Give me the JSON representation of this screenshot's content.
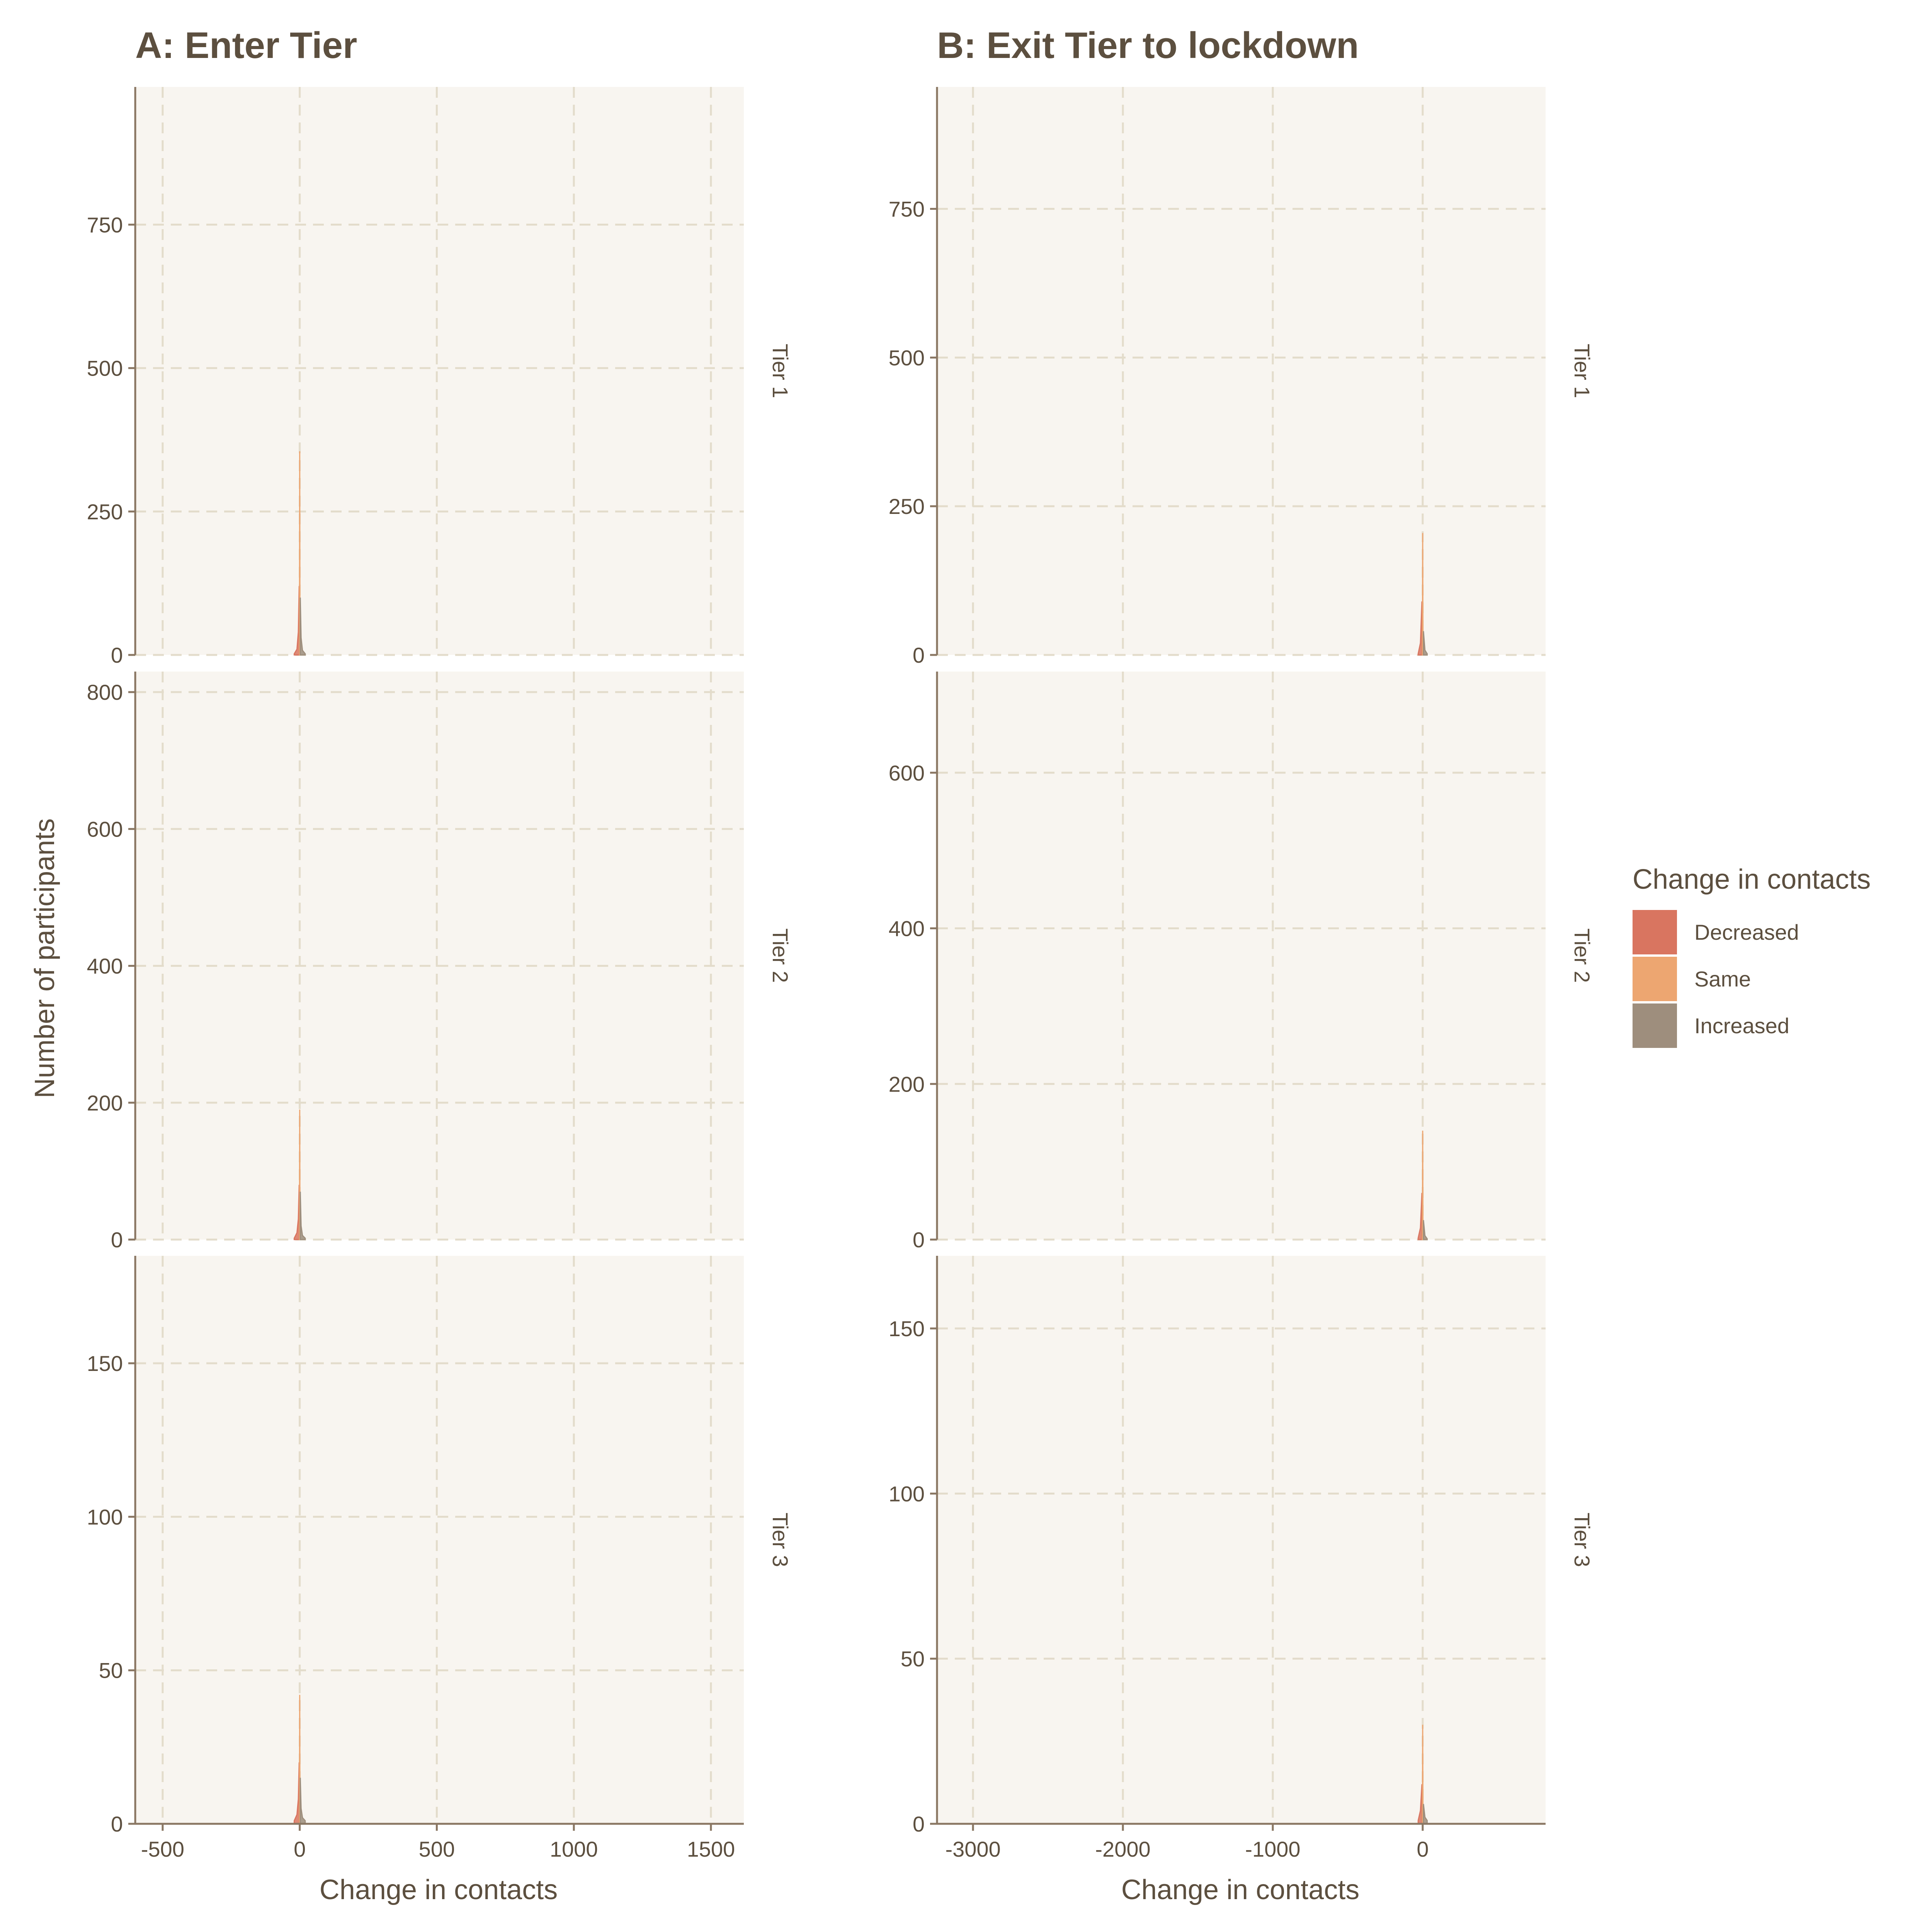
{
  "chart_data": [
    {
      "type": "area",
      "title": "A: Enter Tier",
      "xlabel": "Change in contacts",
      "ylabel": "Number of participants",
      "xlim": [
        -600,
        1620
      ],
      "xticks": [
        -500,
        0,
        500,
        1000,
        1500
      ],
      "xtick_labels": [
        "-500",
        "0",
        "500",
        "1000",
        "1500"
      ],
      "facets": [
        {
          "label": "Tier 1",
          "ylim": [
            0,
            990
          ],
          "yticks": [
            0,
            250,
            500,
            750
          ],
          "ytick_labels": [
            "0",
            "250",
            "500",
            "750"
          ],
          "series": [
            {
              "name": "Decreased",
              "x": [
                -20,
                -10,
                -5,
                -2
              ],
              "y": [
                2,
                10,
                40,
                120
              ]
            },
            {
              "name": "Same",
              "x": [
                -1,
                0,
                1
              ],
              "y": [
                0,
                355,
                0
              ]
            },
            {
              "name": "Increased",
              "x": [
                2,
                5,
                10,
                20
              ],
              "y": [
                100,
                30,
                8,
                2
              ]
            }
          ]
        },
        {
          "label": "Tier 2",
          "ylim": [
            0,
            830
          ],
          "yticks": [
            0,
            200,
            400,
            600,
            800
          ],
          "ytick_labels": [
            "0",
            "200",
            "400",
            "600",
            "800"
          ],
          "series": [
            {
              "name": "Decreased",
              "x": [
                -20,
                -10,
                -5,
                -2
              ],
              "y": [
                2,
                10,
                30,
                80
              ]
            },
            {
              "name": "Same",
              "x": [
                -1,
                0,
                1
              ],
              "y": [
                0,
                190,
                0
              ]
            },
            {
              "name": "Increased",
              "x": [
                2,
                5,
                10,
                20
              ],
              "y": [
                70,
                20,
                6,
                2
              ]
            }
          ]
        },
        {
          "label": "Tier 3",
          "ylim": [
            0,
            185
          ],
          "yticks": [
            0,
            50,
            100,
            150
          ],
          "ytick_labels": [
            "0",
            "50",
            "100",
            "150"
          ],
          "series": [
            {
              "name": "Decreased",
              "x": [
                -20,
                -10,
                -5,
                -2
              ],
              "y": [
                1,
                3,
                8,
                20
              ]
            },
            {
              "name": "Same",
              "x": [
                -1,
                0,
                1
              ],
              "y": [
                0,
                42,
                0
              ]
            },
            {
              "name": "Increased",
              "x": [
                2,
                5,
                10,
                20
              ],
              "y": [
                15,
                5,
                2,
                1
              ]
            }
          ]
        }
      ]
    },
    {
      "type": "area",
      "title": "B: Exit Tier to lockdown",
      "xlabel": "Change in contacts",
      "ylabel": "Number of participants",
      "xlim": [
        -3240,
        820
      ],
      "xticks": [
        -3000,
        -2000,
        -1000,
        0
      ],
      "xtick_labels": [
        "-3000",
        "-2000",
        "-1000",
        "0"
      ],
      "facets": [
        {
          "label": "Tier 1",
          "ylim": [
            0,
            955
          ],
          "yticks": [
            0,
            250,
            500,
            750
          ],
          "ytick_labels": [
            "0",
            "250",
            "500",
            "750"
          ],
          "series": [
            {
              "name": "Decreased",
              "x": [
                -30,
                -15,
                -5
              ],
              "y": [
                2,
                20,
                90
              ]
            },
            {
              "name": "Same",
              "x": [
                -2,
                0,
                2
              ],
              "y": [
                0,
                205,
                0
              ]
            },
            {
              "name": "Increased",
              "x": [
                5,
                15,
                30
              ],
              "y": [
                40,
                8,
                2
              ]
            }
          ]
        },
        {
          "label": "Tier 2",
          "ylim": [
            0,
            730
          ],
          "yticks": [
            0,
            200,
            400,
            600
          ],
          "ytick_labels": [
            "0",
            "200",
            "400",
            "600"
          ],
          "series": [
            {
              "name": "Decreased",
              "x": [
                -30,
                -15,
                -5
              ],
              "y": [
                2,
                15,
                60
              ]
            },
            {
              "name": "Same",
              "x": [
                -2,
                0,
                2
              ],
              "y": [
                0,
                140,
                0
              ]
            },
            {
              "name": "Increased",
              "x": [
                5,
                15,
                30
              ],
              "y": [
                25,
                5,
                1
              ]
            }
          ]
        },
        {
          "label": "Tier 3",
          "ylim": [
            0,
            172
          ],
          "yticks": [
            0,
            50,
            100,
            150
          ],
          "ytick_labels": [
            "0",
            "50",
            "100",
            "150"
          ],
          "series": [
            {
              "name": "Decreased",
              "x": [
                -30,
                -15,
                -5
              ],
              "y": [
                1,
                4,
                12
              ]
            },
            {
              "name": "Same",
              "x": [
                -2,
                0,
                2
              ],
              "y": [
                0,
                30,
                0
              ]
            },
            {
              "name": "Increased",
              "x": [
                5,
                15,
                30
              ],
              "y": [
                6,
                2,
                1
              ]
            }
          ]
        }
      ]
    }
  ],
  "legend": {
    "title": "Change in contacts",
    "items": [
      {
        "label": "Decreased",
        "color": "#d97560"
      },
      {
        "label": "Same",
        "color": "#eda671"
      },
      {
        "label": "Increased",
        "color": "#9e8e7d"
      }
    ]
  },
  "colors": {
    "panel_bg": "#f8f5f0",
    "grid": "#e3dccb",
    "axis": "#8a7763",
    "text": "#5c4f3f"
  }
}
